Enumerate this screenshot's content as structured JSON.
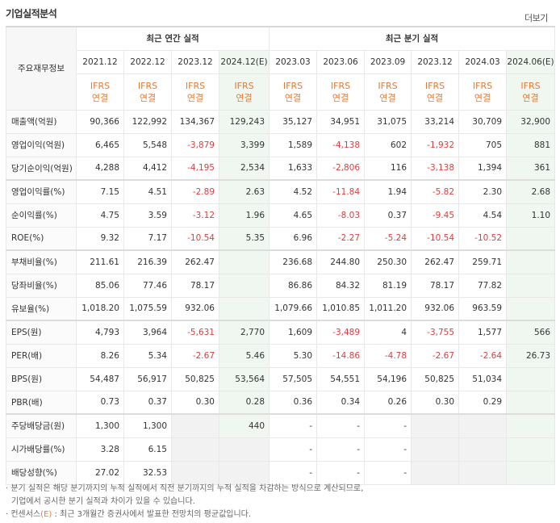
{
  "title": "기업실적분석",
  "more_link": "더보기",
  "header": {
    "label": "주요재무정보",
    "annual_group": "최근 연간 실적",
    "quarter_group": "최근 분기 실적",
    "annual_periods": [
      "2021.12",
      "2022.12",
      "2023.12",
      "2024.12(E)"
    ],
    "quarter_periods": [
      "2023.03",
      "2023.06",
      "2023.09",
      "2023.12",
      "2024.03",
      "2024.06(E)"
    ],
    "ifrs_line1": "IFRS",
    "ifrs_line2": "연결"
  },
  "rows": [
    {
      "label": "매출액(억원)",
      "values": [
        "90,366",
        "122,992",
        "134,367",
        "129,243",
        "35,127",
        "34,951",
        "31,075",
        "33,214",
        "30,709",
        "32,900"
      ]
    },
    {
      "label": "영업이익(억원)",
      "values": [
        "6,465",
        "5,548",
        "-3,879",
        "3,399",
        "1,589",
        "-4,138",
        "602",
        "-1,932",
        "705",
        "881"
      ]
    },
    {
      "label": "당기순이익(억원)",
      "values": [
        "4,288",
        "4,412",
        "-4,195",
        "2,534",
        "1,633",
        "-2,806",
        "116",
        "-3,138",
        "1,394",
        "361"
      ]
    },
    {
      "label": "영업이익률(%)",
      "values": [
        "7.15",
        "4.51",
        "-2.89",
        "2.63",
        "4.52",
        "-11.84",
        "1.94",
        "-5.82",
        "2.30",
        "2.68"
      ]
    },
    {
      "label": "순이익률(%)",
      "values": [
        "4.75",
        "3.59",
        "-3.12",
        "1.96",
        "4.65",
        "-8.03",
        "0.37",
        "-9.45",
        "4.54",
        "1.10"
      ]
    },
    {
      "label": "ROE(%)",
      "values": [
        "9.32",
        "7.17",
        "-10.54",
        "5.35",
        "6.96",
        "-2.27",
        "-5.24",
        "-10.54",
        "-10.52",
        ""
      ]
    },
    {
      "label": "부채비율(%)",
      "values": [
        "211.61",
        "216.39",
        "262.47",
        "",
        "236.68",
        "244.80",
        "250.30",
        "262.47",
        "259.71",
        ""
      ]
    },
    {
      "label": "당좌비율(%)",
      "values": [
        "85.06",
        "77.46",
        "78.17",
        "",
        "86.86",
        "84.32",
        "81.19",
        "78.17",
        "77.82",
        ""
      ]
    },
    {
      "label": "유보율(%)",
      "values": [
        "1,018.20",
        "1,075.59",
        "932.06",
        "",
        "1,079.66",
        "1,010.85",
        "1,011.20",
        "932.06",
        "963.59",
        ""
      ]
    },
    {
      "label": "EPS(원)",
      "values": [
        "4,793",
        "3,964",
        "-5,631",
        "2,770",
        "1,609",
        "-3,489",
        "4",
        "-3,755",
        "1,577",
        "566"
      ]
    },
    {
      "label": "PER(배)",
      "values": [
        "8.26",
        "5.34",
        "-2.67",
        "5.46",
        "5.30",
        "-14.86",
        "-4.78",
        "-2.67",
        "-2.64",
        "26.73"
      ]
    },
    {
      "label": "BPS(원)",
      "values": [
        "54,487",
        "56,917",
        "50,825",
        "53,564",
        "57,505",
        "54,551",
        "54,196",
        "50,825",
        "51,034",
        ""
      ]
    },
    {
      "label": "PBR(배)",
      "values": [
        "0.73",
        "0.37",
        "0.30",
        "0.28",
        "0.36",
        "0.34",
        "0.26",
        "0.30",
        "0.29",
        ""
      ]
    },
    {
      "label": "주당배당금(원)",
      "values": [
        "1,300",
        "1,300",
        "",
        "440",
        "-",
        "-",
        "-",
        "",
        "",
        ""
      ]
    },
    {
      "label": "시가배당률(%)",
      "values": [
        "3.28",
        "6.15",
        "",
        "",
        "-",
        "-",
        "-",
        "",
        "",
        ""
      ]
    },
    {
      "label": "배당성향(%)",
      "values": [
        "27.02",
        "32.53",
        "",
        "",
        "-",
        "-",
        "-",
        "",
        "",
        ""
      ]
    }
  ],
  "notes": {
    "line1": "· 분기 실적은 해당 분기까지의 누적 실적에서 직전 분기까지의 누적 실적을 차감하는 방식으로 계산되므로,",
    "line2": "기업에서 공시한 분기 실적과 차이가 있을 수 있습니다.",
    "line3_prefix": "· 컨센서스",
    "line3_tag": "(E)",
    "line3_suffix": " : 최근 3개월간 증권사에서 발표한 전망치의 평균값입니다."
  }
}
